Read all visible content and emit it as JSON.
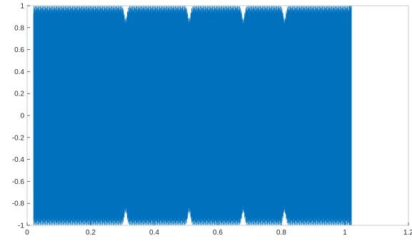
{
  "chart_data": {
    "type": "line",
    "title": "",
    "xlabel": "",
    "ylabel": "",
    "xlim": [
      0,
      1.2
    ],
    "ylim": [
      -1,
      1
    ],
    "grid": false,
    "x_ticks": [
      "0",
      "0.2",
      "0.4",
      "0.6",
      "0.8",
      "1",
      "1.2"
    ],
    "y_ticks": [
      "1",
      "0.8",
      "0.6",
      "0.4",
      "0.2",
      "0",
      "-0.2",
      "-0.4",
      "-0.6",
      "-0.8",
      "-1"
    ],
    "series": [
      {
        "name": "",
        "color": "#0072BD",
        "description_of_signal": "dense oscillation between -1 and 1 spanning x = 0.02 to 1.02, sparse individual cycles near x < 0.1 and near x = 1.02",
        "x_start": 0.02,
        "x_end": 1.02,
        "amplitude": 1,
        "dips_at_x": [
          0.31,
          0.51,
          0.68,
          0.81
        ],
        "isolated_lines_at_x": [
          1.015,
          1.02
        ]
      }
    ]
  }
}
